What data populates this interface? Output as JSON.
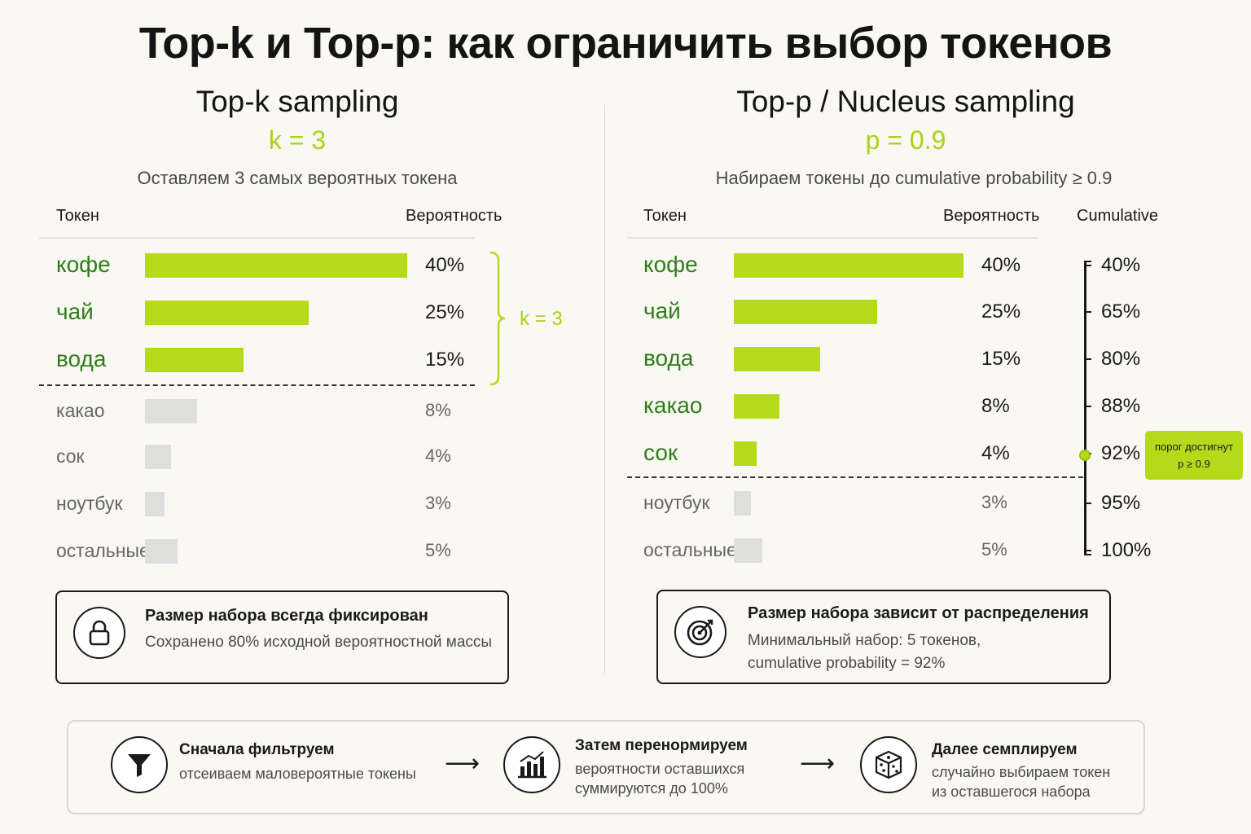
{
  "title": "Top-k и Top-p: как ограничить выбор токенов",
  "left": {
    "title": "Top-k sampling",
    "param": "k = 3",
    "subtitle": "Оставляем 3 самых вероятных токена",
    "col_token": "Токен",
    "col_prob": "Вероятность",
    "brace_label": "k = 3",
    "card": {
      "icon": "lock-icon",
      "title": "Размер набора всегда фиксирован",
      "text": "Сохранено 80% исходной вероятностной массы"
    }
  },
  "right": {
    "title": "Top-p / Nucleus sampling",
    "param": "p = 0.9",
    "subtitle": "Набираем токены до cumulative probability ≥ 0.9",
    "col_token": "Токен",
    "col_prob": "Вероятность",
    "col_cum": "Cumulative",
    "threshold_line1": "порог достигнут",
    "threshold_line2": "p ≥ 0.9",
    "card": {
      "icon": "target-icon",
      "title": "Размер набора зависит от распределения",
      "text1": "Минимальный набор: 5 токенов,",
      "text2": "cumulative probability = 92%"
    }
  },
  "flow": {
    "steps": [
      {
        "icon": "funnel-icon",
        "title": "Сначала фильтруем",
        "text1": "отсеиваем маловероятные токены",
        "text2": ""
      },
      {
        "icon": "bar-chart-icon",
        "title": "Затем перенормируем",
        "text1": "вероятности оставшихся",
        "text2": "суммируются до 100%"
      },
      {
        "icon": "dice-icon",
        "title": "Далее семплируем",
        "text1": "случайно выбираем токен",
        "text2": "из оставшегося набора"
      }
    ],
    "arrow": "⟶"
  },
  "colors": {
    "accent": "#b5da1a",
    "selected_text": "#2f7d1a",
    "excluded_bar": "#dededd"
  },
  "chart_data": [
    {
      "type": "bar",
      "orientation": "horizontal",
      "title": "Top-k sampling",
      "xlabel": "Вероятность",
      "ylabel": "Токен",
      "categories": [
        "кофе",
        "чай",
        "вода",
        "какао",
        "сок",
        "ноутбук",
        "остальные"
      ],
      "values": [
        40,
        25,
        15,
        8,
        4,
        3,
        5
      ],
      "labels": [
        "40%",
        "25%",
        "15%",
        "8%",
        "4%",
        "3%",
        "5%"
      ],
      "selected": [
        true,
        true,
        true,
        false,
        false,
        false,
        false
      ],
      "xlim": [
        0,
        40
      ]
    },
    {
      "type": "bar",
      "orientation": "horizontal",
      "title": "Top-p / Nucleus sampling",
      "xlabel": "Вероятность",
      "ylabel": "Токен",
      "categories": [
        "кофе",
        "чай",
        "вода",
        "какао",
        "сок",
        "ноутбук",
        "остальные"
      ],
      "values": [
        40,
        25,
        15,
        8,
        4,
        3,
        5
      ],
      "labels": [
        "40%",
        "25%",
        "15%",
        "8%",
        "4%",
        "3%",
        "5%"
      ],
      "cumulative": [
        40,
        65,
        80,
        88,
        92,
        95,
        100
      ],
      "cumulative_labels": [
        "40%",
        "65%",
        "80%",
        "88%",
        "92%",
        "95%",
        "100%"
      ],
      "selected": [
        true,
        true,
        true,
        true,
        true,
        false,
        false
      ],
      "threshold": 0.9,
      "xlim": [
        0,
        40
      ]
    }
  ]
}
